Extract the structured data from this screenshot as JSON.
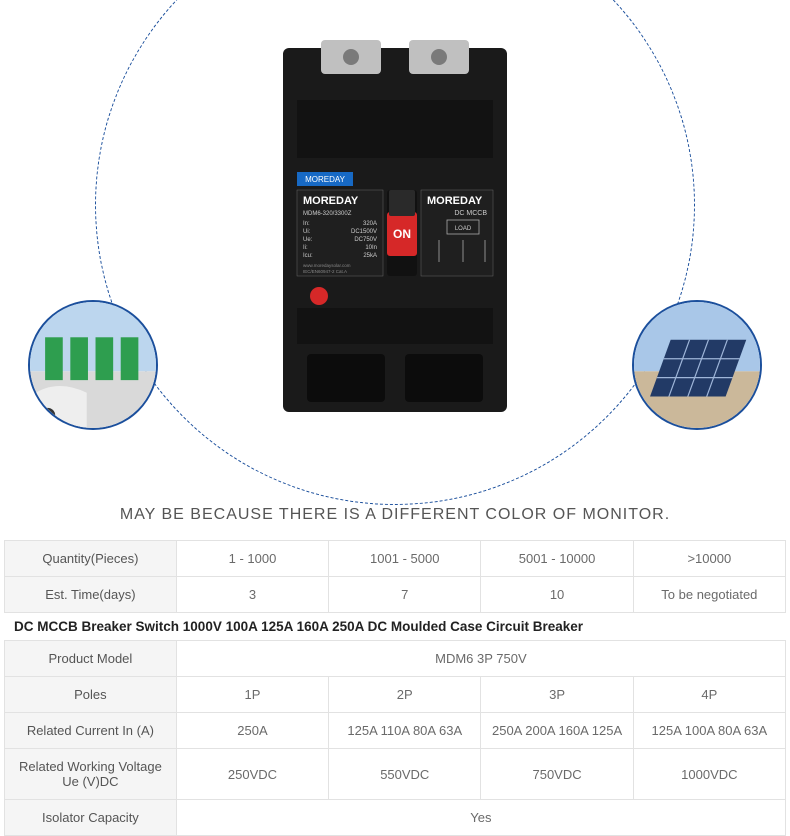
{
  "diagram": {
    "arc_color": "#1b4f9c",
    "circle_border_color": "#1b4f9c",
    "left_circle_alt": "ev-charging-stations",
    "right_circle_alt": "solar-panels"
  },
  "product": {
    "brand": "MOREDAY",
    "brand_tag": "MOREDAY",
    "model": "MDM6-320/3300Z",
    "specs": {
      "In_label": "In:",
      "In_val": "320A",
      "Ui_label": "Ui:",
      "Ui_val": "DC1500V",
      "Ue_label": "Ue:",
      "Ue_val": "DC750V",
      "Ii_label": "Ii:",
      "Ii_val": "10In",
      "Icu_label": "Icu:",
      "Icu_val": "25kA"
    },
    "switch_label": "ON",
    "right_title": "DC MCCB",
    "load_label": "LOAD",
    "body_color": "#1a1a1a",
    "switch_color": "#d62828",
    "terminal_color": "#c0c0c0",
    "footer": "www.moredaysolar.com",
    "cert": "IEC/EN60947-2  Cat.A"
  },
  "caption": "MAY BE BECAUSE THERE IS A DIFFERENT COLOR OF MONITOR.",
  "table1": {
    "rows": [
      {
        "label": "Quantity(Pieces)",
        "cells": [
          "1 - 1000",
          "1001 - 5000",
          "5001 - 10000",
          ">10000"
        ]
      },
      {
        "label": "Est. Time(days)",
        "cells": [
          "3",
          "7",
          "10",
          "To be negotiated"
        ]
      }
    ]
  },
  "title2": "DC MCCB Breaker Switch 1000V 100A 125A 160A 250A DC Moulded Case Circuit Breaker",
  "table2": {
    "rows": [
      {
        "label": "Product Model",
        "span": 4,
        "cells": [
          "MDM6 3P 750V"
        ]
      },
      {
        "label": "Poles",
        "cells": [
          "1P",
          "2P",
          "3P",
          "4P"
        ]
      },
      {
        "label": "Related Current In (A)",
        "cells": [
          "250A",
          "125A 110A 80A 63A",
          "250A 200A 160A 125A",
          "125A 100A 80A 63A"
        ]
      },
      {
        "label": "Related Working Voltage Ue (V)DC",
        "cells": [
          "250VDC",
          "550VDC",
          "750VDC",
          "1000VDC"
        ]
      },
      {
        "label": "Isolator Capacity",
        "span": 4,
        "cells": [
          "Yes"
        ]
      }
    ]
  },
  "colors": {
    "border": "#e2e2e2",
    "row_label_bg": "#f5f5f5",
    "text": "#6a6a6a"
  }
}
